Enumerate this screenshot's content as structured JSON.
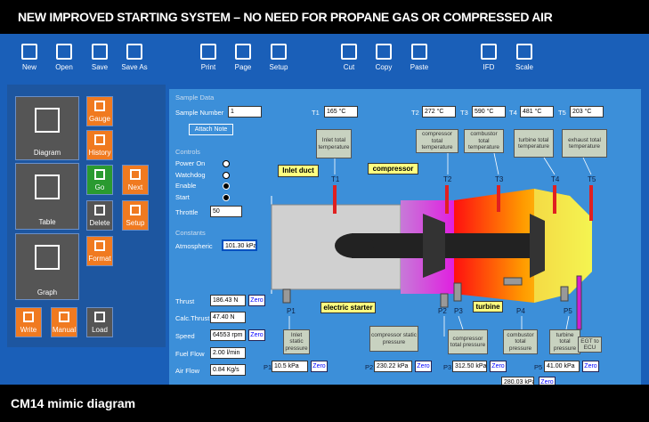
{
  "banner": "NEW IMPROVED STARTING SYSTEM – NO NEED FOR PROPANE GAS OR COMPRESSED AIR",
  "toolbar": [
    "New",
    "Open",
    "Save",
    "Save As",
    "Print",
    "Page",
    "Setup",
    "Cut",
    "Copy",
    "Paste",
    "IFD",
    "Scale"
  ],
  "sidebar": [
    "Diagram",
    "Gauge",
    "History",
    "Table",
    "Go",
    "Next",
    "Delete",
    "Setup",
    "Graph",
    "Format",
    "Write",
    "Manual",
    "Load"
  ],
  "mimic": {
    "section_sample": "Sample Data",
    "sample_number_label": "Sample Number",
    "sample_number": "1",
    "attach_note": "Attach Note",
    "section_controls": "Controls",
    "controls": [
      "Power On",
      "Watchdog",
      "Enable",
      "Start"
    ],
    "throttle_label": "Throttle",
    "throttle": "50",
    "section_constants": "Constants",
    "atmospheric_label": "Atmospheric",
    "atmospheric": "101.30 kPa",
    "temps": [
      {
        "name": "T1",
        "value": "165 °C"
      },
      {
        "name": "T2",
        "value": "272 °C"
      },
      {
        "name": "T3",
        "value": "590 °C"
      },
      {
        "name": "T4",
        "value": "481 °C"
      },
      {
        "name": "T5",
        "value": "203 °C"
      }
    ],
    "temp_labels": [
      "Inlet total temperature",
      "compressor total temperature",
      "combustor total temperature",
      "turbine total temperature",
      "exhaust total temperature"
    ],
    "components": [
      "Inlet duct",
      "compressor",
      "electric starter",
      "turbine"
    ],
    "readings": [
      {
        "label": "Thrust",
        "value": "186.43 N",
        "zero": "Zero"
      },
      {
        "label": "Calc.Thrust",
        "value": "47.40 N"
      },
      {
        "label": "Speed",
        "value": "64553 rpm",
        "zero": "Zero"
      },
      {
        "label": "Fuel Flow",
        "value": "2.00 l/min"
      },
      {
        "label": "Air Flow",
        "value": "0.84 Kg/s"
      }
    ],
    "pressure_labels": [
      "Inlet static pressure",
      "compressor static pressure",
      "compressor total pressure",
      "combustor total pressure",
      "turbine total pressure",
      "EGT to ECU"
    ],
    "pressures": [
      {
        "name": "P1",
        "value": "10.5 kPa",
        "zero": "Zero"
      },
      {
        "name": "P2",
        "value": "230.22 kPa",
        "zero": "Zero"
      },
      {
        "name": "P3",
        "value": "312.50 kPa",
        "zero": "Zero"
      },
      {
        "name": "P5",
        "value": "41.00 kPa",
        "zero": "Zero"
      }
    ],
    "p4_value": "280.03 kPa",
    "p4_zero": "Zero",
    "probes_bottom": [
      "P1",
      "P2",
      "P3",
      "P4",
      "P5"
    ]
  },
  "caption": "CM14 mimic diagram"
}
